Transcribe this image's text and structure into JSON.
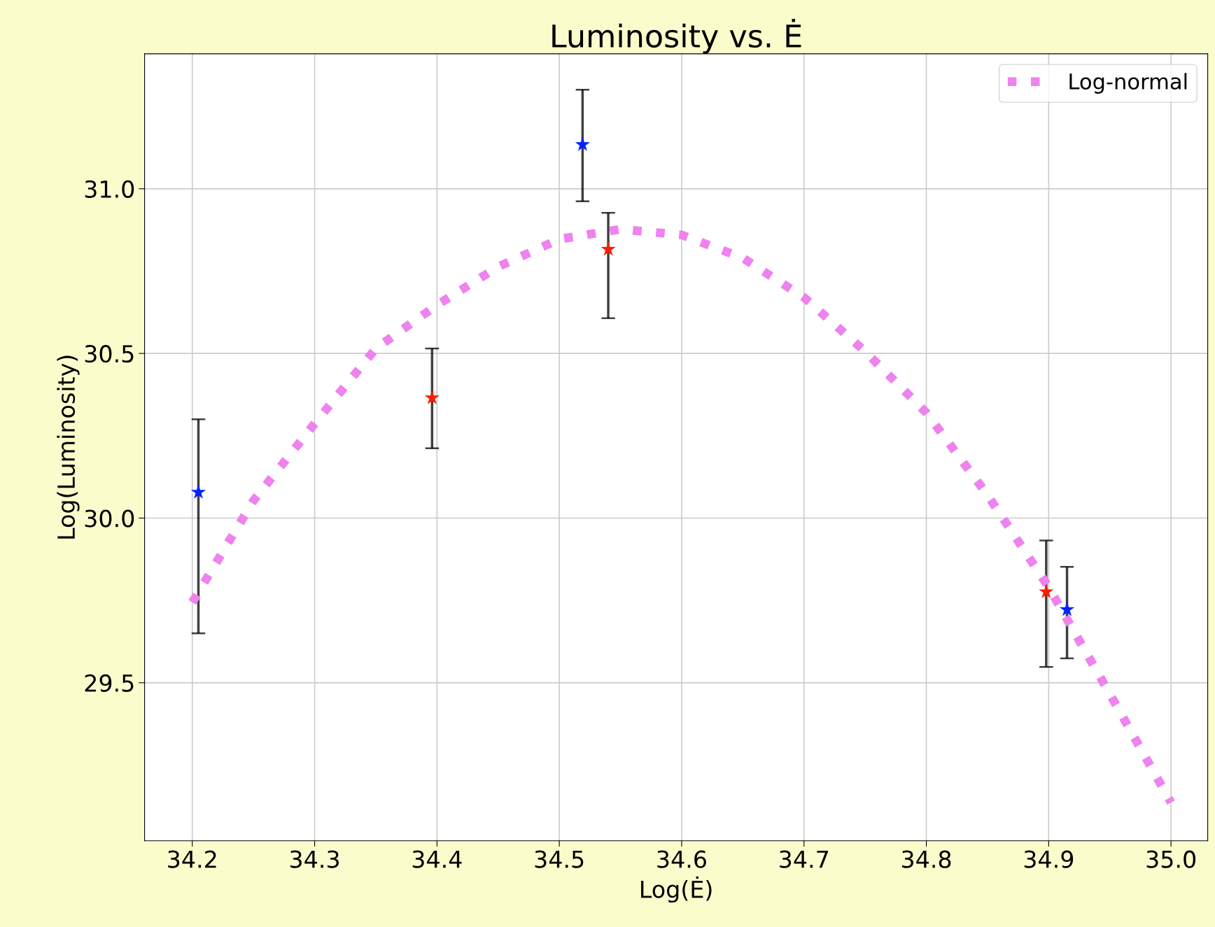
{
  "chart_data": {
    "type": "scatter",
    "title": "Luminosity vs. Ė",
    "xlabel": "Log(Ė)",
    "ylabel": "Log(Luminosity)",
    "series": [
      {
        "color": "#0022ff",
        "x": [
          34.205,
          34.519,
          34.915
        ],
        "values": [
          30.078,
          31.134,
          29.722
        ],
        "errors": [
          [
            29.65,
            30.3
          ],
          [
            30.962,
            31.301
          ],
          [
            29.574,
            29.852
          ]
        ]
      },
      {
        "color": "#ff1a00",
        "x": [
          34.396,
          34.54,
          34.898
        ],
        "values": [
          30.365,
          30.816,
          29.776
        ],
        "errors": [
          [
            30.212,
            30.515
          ],
          [
            30.607,
            30.927
          ],
          [
            29.548,
            29.932
          ]
        ]
      },
      {
        "type": "line",
        "name": "Log-normal",
        "color": "#ee82ee",
        "marker": "none",
        "line_style": "dotted",
        "x": [
          34.2,
          34.25,
          34.3,
          34.35,
          34.4,
          34.45,
          34.5,
          34.55,
          34.6,
          34.65,
          34.7,
          34.75,
          34.8,
          34.85,
          34.9,
          34.95,
          35.0
        ],
        "values": [
          29.744,
          30.053,
          30.287,
          30.515,
          30.647,
          30.763,
          30.847,
          30.877,
          30.86,
          30.79,
          30.67,
          30.506,
          30.32,
          30.07,
          29.79,
          29.466,
          29.136
        ]
      }
    ],
    "marker": "star",
    "xlim": [
      34.161,
      35.03
    ],
    "ylim": [
      29.02,
      31.41
    ],
    "xticks": [
      34.2,
      34.3,
      34.4,
      34.5,
      34.6,
      34.7,
      34.8,
      34.9,
      {
        "value": 35,
        "label": "35.0"
      }
    ],
    "yticks": [
      29.5,
      {
        "value": 30,
        "label": "30.0"
      },
      30.5,
      {
        "value": 31,
        "label": "31.0"
      }
    ],
    "grid": true,
    "legend": "top right"
  }
}
